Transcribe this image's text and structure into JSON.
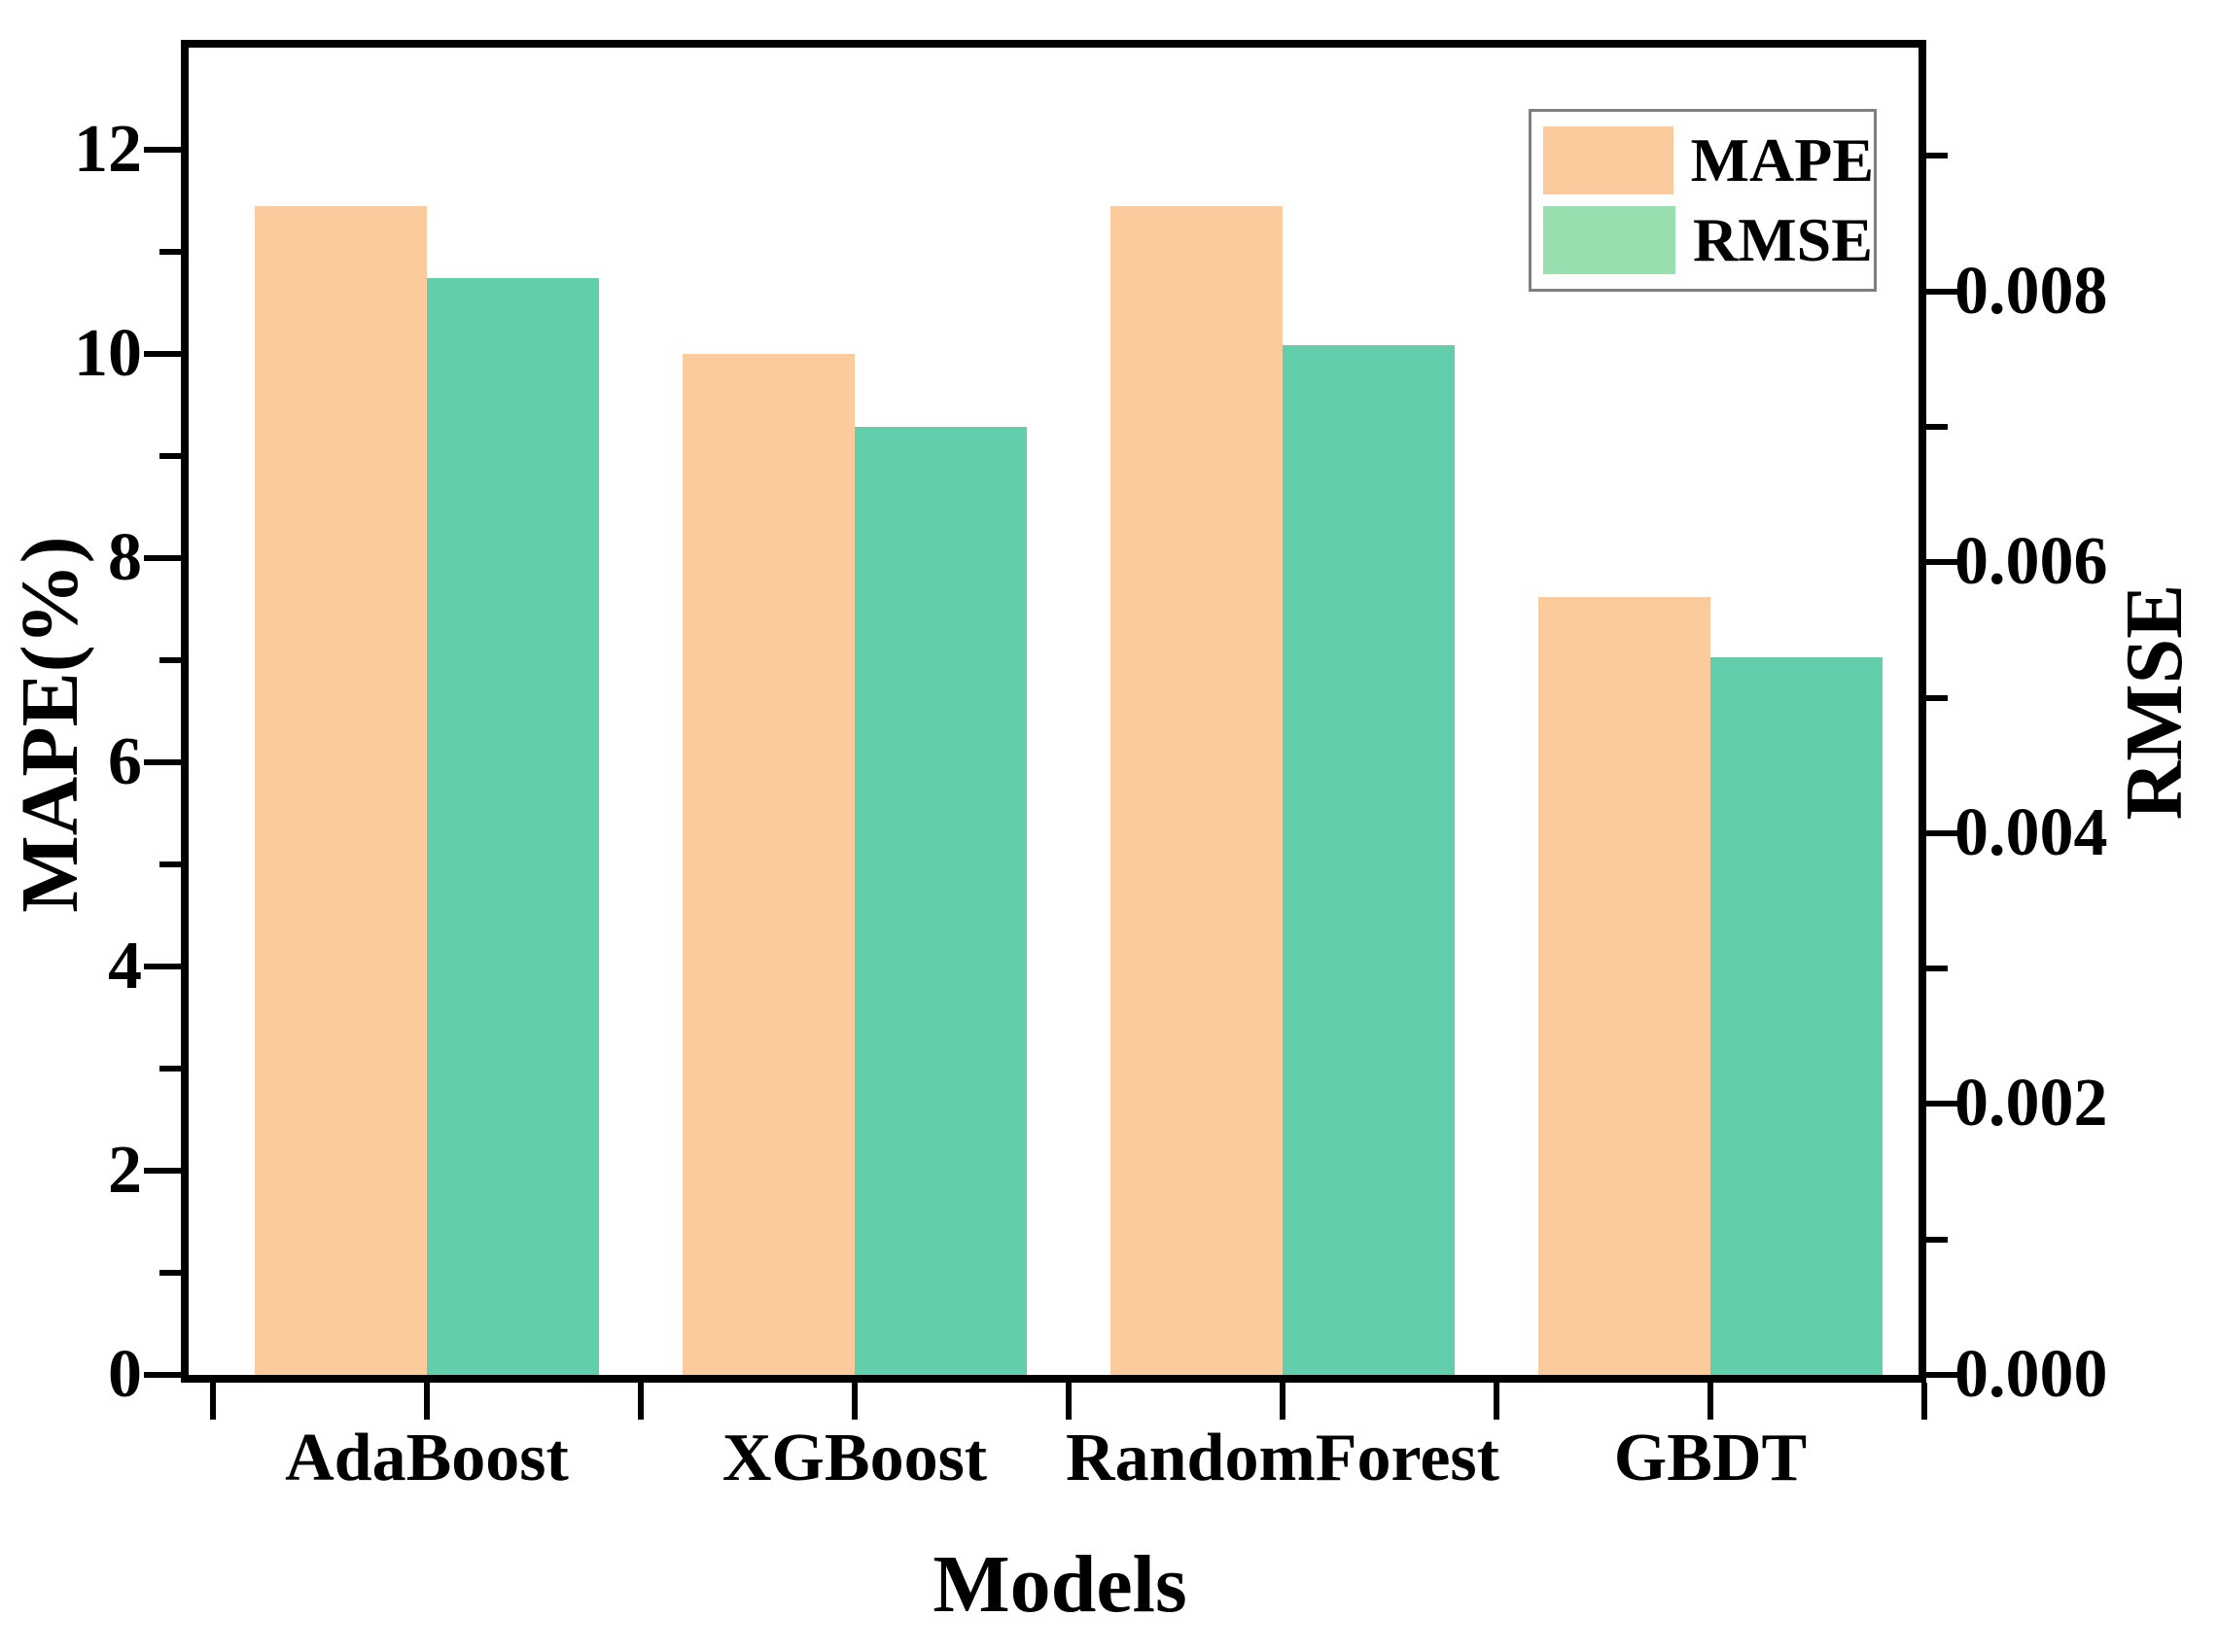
{
  "axes": {
    "x_label": "Models",
    "left_label": "MAPE(%)",
    "right_label": "RMSE"
  },
  "legend": {
    "position": "top-right",
    "entries": [
      {
        "label": "MAPE",
        "color": "#FCCB9D"
      },
      {
        "label": "RMSE",
        "color": "#97DFAF"
      }
    ]
  },
  "chart_data": {
    "type": "bar",
    "title": "",
    "xlabel": "Models",
    "ylabel_left": "MAPE(%)",
    "ylabel_right": "RMSE",
    "categories": [
      "AdaBoost",
      "XGBoost",
      "RandomForest",
      "GBDT"
    ],
    "series": [
      {
        "name": "MAPE",
        "axis": "left",
        "color": "#FCCB9D",
        "values": [
          11.45,
          10.0,
          11.45,
          7.62
        ]
      },
      {
        "name": "RMSE",
        "axis": "right",
        "color": "#63CEAC",
        "values": [
          0.0081,
          0.007,
          0.0076,
          0.0053
        ]
      }
    ],
    "left_axis": {
      "range": [
        0,
        13.0
      ],
      "major_ticks": [
        0,
        2,
        4,
        6,
        8,
        10,
        12
      ],
      "tick_labels": [
        "0",
        "2",
        "4",
        "6",
        "8",
        "10",
        "12"
      ],
      "minor_ticks": [
        1,
        3,
        5,
        7,
        9,
        11
      ]
    },
    "right_axis": {
      "range": [
        0,
        0.0098
      ],
      "major_ticks": [
        0,
        0.002,
        0.004,
        0.006,
        0.008
      ],
      "tick_labels": [
        "0.000",
        "0.002",
        "0.004",
        "0.006",
        "0.008"
      ],
      "minor_ticks": [
        0.001,
        0.003,
        0.005,
        0.007,
        0.009
      ]
    },
    "grid": false,
    "legend_position": "top-right"
  }
}
